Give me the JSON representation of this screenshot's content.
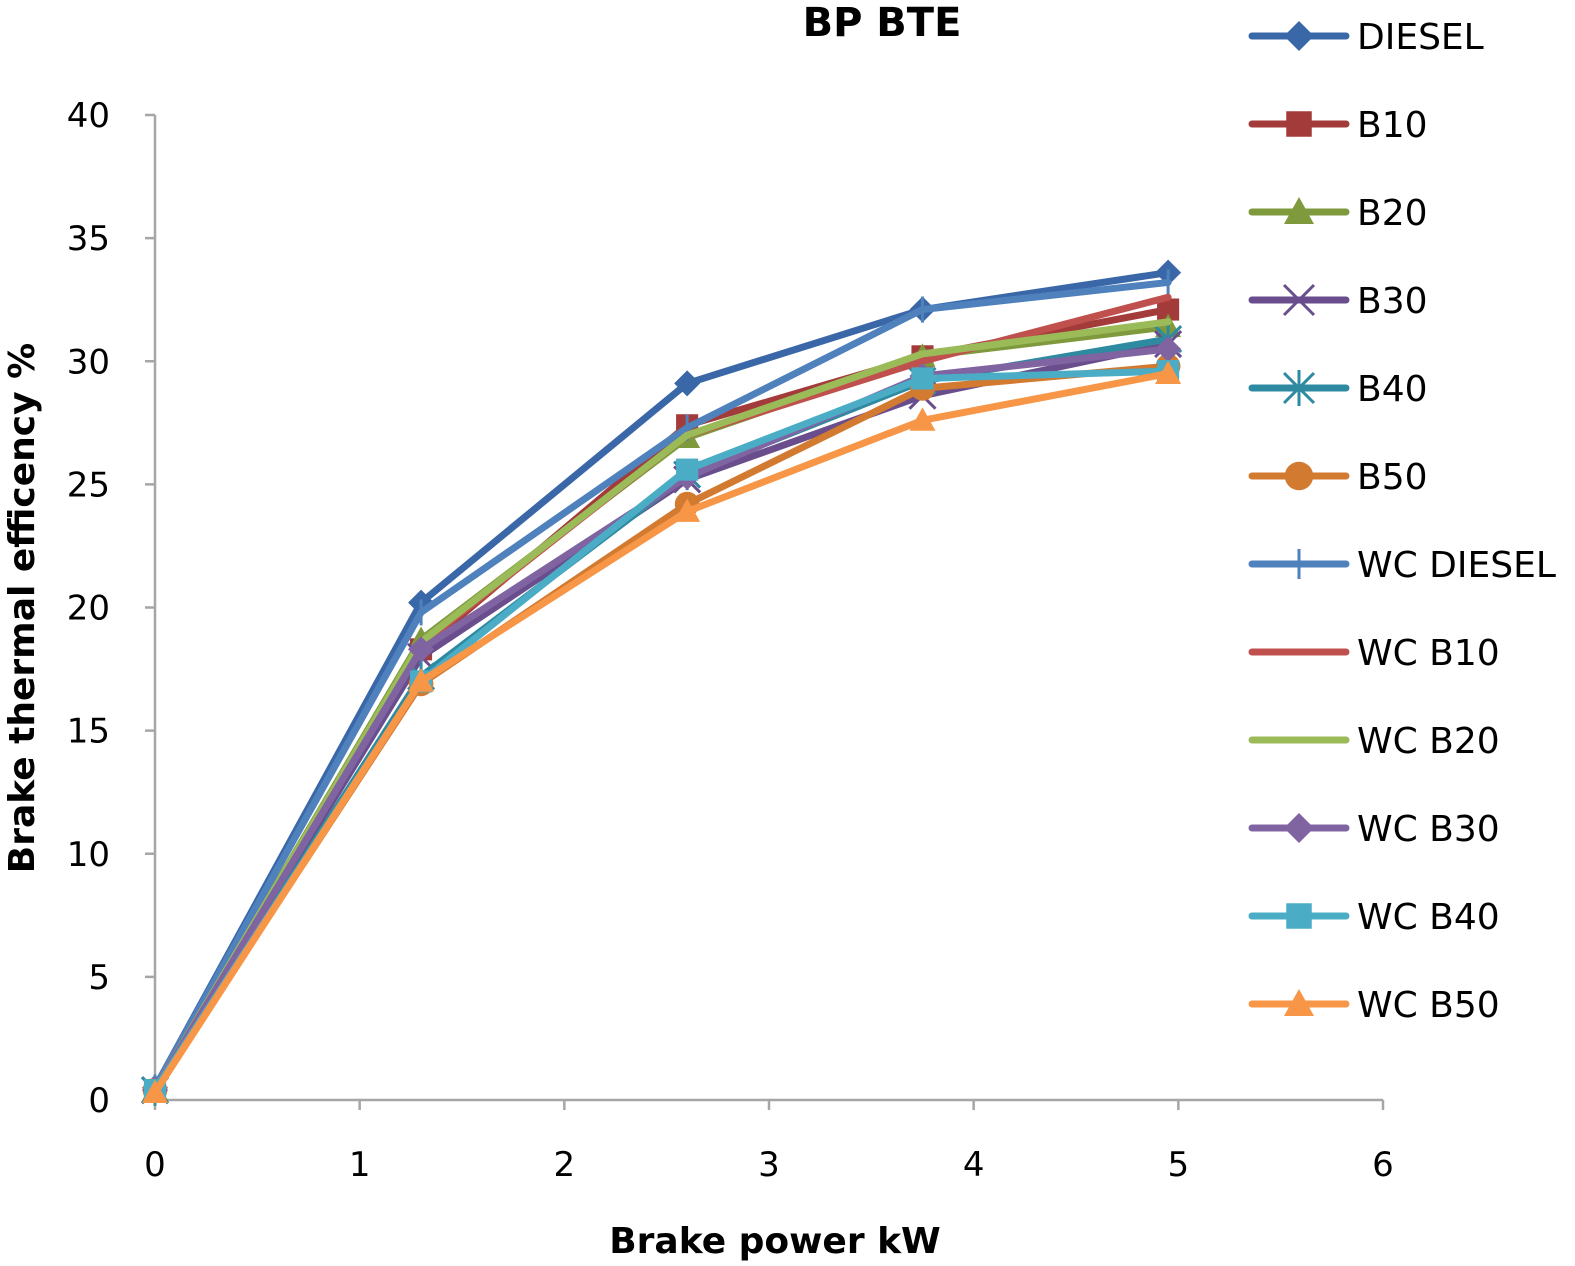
{
  "chart_data": {
    "type": "line",
    "title": "BP BTE",
    "xlabel": "Brake power kW",
    "ylabel": "Brake thermal efficency %",
    "xlim": [
      0,
      6
    ],
    "ylim": [
      0,
      40
    ],
    "xticks": [
      "0",
      "1",
      "2",
      "3",
      "4",
      "5",
      "6"
    ],
    "yticks": [
      "0",
      "5",
      "10",
      "15",
      "20",
      "25",
      "30",
      "35",
      "40"
    ],
    "grid": false,
    "legend_position": "right",
    "x": [
      0,
      1.3,
      2.6,
      3.75,
      4.95
    ],
    "series": [
      {
        "name": "DIESEL",
        "values": [
          0.5,
          20.2,
          29.1,
          32.1,
          33.6
        ],
        "color": "#3a67a8",
        "marker": "diamond"
      },
      {
        "name": "B10",
        "values": [
          0.4,
          18.3,
          27.4,
          30.2,
          32.1
        ],
        "color": "#a33b3a",
        "marker": "square"
      },
      {
        "name": "B20",
        "values": [
          0.4,
          18.7,
          26.9,
          30.2,
          31.4
        ],
        "color": "#7f9a3c",
        "marker": "triangle"
      },
      {
        "name": "B30",
        "values": [
          0.4,
          18.0,
          25.2,
          28.6,
          30.7
        ],
        "color": "#6a4d8c",
        "marker": "x"
      },
      {
        "name": "B40",
        "values": [
          0.4,
          17.2,
          25.4,
          29.2,
          30.9
        ],
        "color": "#2e8aa0",
        "marker": "star"
      },
      {
        "name": "B50",
        "values": [
          0.4,
          16.9,
          24.2,
          28.9,
          29.8
        ],
        "color": "#d27a30",
        "marker": "circle"
      },
      {
        "name": "WC DIESEL",
        "values": [
          0.5,
          19.8,
          27.3,
          32.1,
          33.2
        ],
        "color": "#4f81bd",
        "marker": "plus"
      },
      {
        "name": "WC B10",
        "values": [
          0.4,
          18.5,
          27.0,
          30.0,
          32.6
        ],
        "color": "#c0504d",
        "marker": "none"
      },
      {
        "name": "WC B20",
        "values": [
          0.4,
          18.6,
          27.0,
          30.3,
          31.6
        ],
        "color": "#9bbb59",
        "marker": "none"
      },
      {
        "name": "WC B30",
        "values": [
          0.4,
          18.3,
          25.3,
          29.4,
          30.5
        ],
        "color": "#8064a2",
        "marker": "diamond"
      },
      {
        "name": "WC B40",
        "values": [
          0.4,
          17.0,
          25.6,
          29.3,
          29.6
        ],
        "color": "#4bacc6",
        "marker": "square"
      },
      {
        "name": "WC B50",
        "values": [
          0.3,
          17.0,
          23.9,
          27.6,
          29.5
        ],
        "color": "#f79646",
        "marker": "triangle"
      }
    ]
  }
}
